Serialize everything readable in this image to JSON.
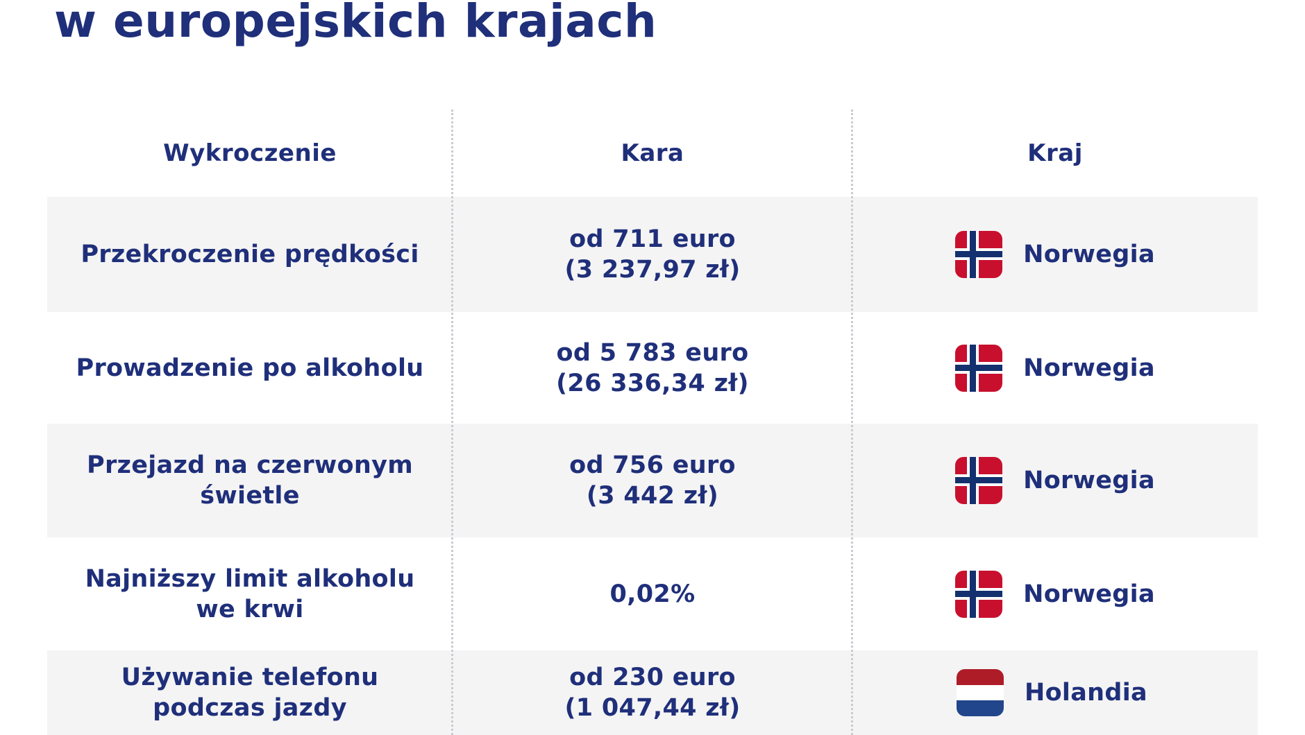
{
  "title": "w europejskich krajach",
  "table": {
    "headers": [
      "Wykroczenie",
      "Kara",
      "Kraj"
    ],
    "rows": [
      {
        "offense": [
          "Przekroczenie prędkości"
        ],
        "fine": [
          "od 711 euro",
          "(3 237,97 zł)"
        ],
        "country": "Norwegia",
        "flag_icon": "norway-flag-icon"
      },
      {
        "offense": [
          "Prowadzenie po alkoholu"
        ],
        "fine": [
          "od 5 783 euro",
          "(26 336,34 zł)"
        ],
        "country": "Norwegia",
        "flag_icon": "norway-flag-icon"
      },
      {
        "offense": [
          "Przejazd na czerwonym",
          "świetle"
        ],
        "fine": [
          "od 756 euro",
          "(3 442 zł)"
        ],
        "country": "Norwegia",
        "flag_icon": "norway-flag-icon"
      },
      {
        "offense": [
          "Najniższy limit alkoholu",
          "we krwi"
        ],
        "fine": [
          "0,02%"
        ],
        "country": "Norwegia",
        "flag_icon": "norway-flag-icon"
      },
      {
        "offense": [
          "Używanie telefonu",
          "podczas jazdy"
        ],
        "fine": [
          "od 230 euro",
          "(1 047,44 zł)"
        ],
        "country": "Holandia",
        "flag_icon": "netherlands-flag-icon"
      }
    ]
  },
  "colors": {
    "text": "#1f2f7a",
    "row_shade": "#f4f4f4",
    "norway_red": "#c8102e",
    "norway_blue": "#14306e",
    "netherlands_red": "#ae1c28",
    "netherlands_blue": "#21468b"
  }
}
